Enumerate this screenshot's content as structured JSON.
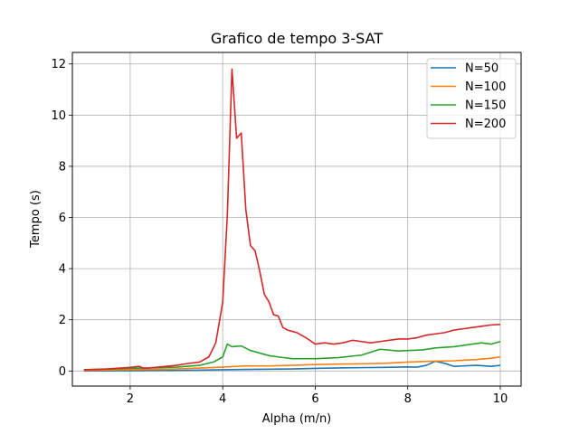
{
  "chart_data": {
    "type": "line",
    "title": "Grafico de tempo 3-SAT",
    "xlabel": "Alpha (m/n)",
    "ylabel": "Tempo (s)",
    "xlim": [
      0.75,
      10.45
    ],
    "ylim": [
      -0.59,
      12.45
    ],
    "xticks": [
      2,
      4,
      6,
      8,
      10
    ],
    "yticks": [
      0,
      2,
      4,
      6,
      8,
      10,
      12
    ],
    "grid": true,
    "legend_position": "top-right",
    "series": [
      {
        "name": "N=50",
        "color": "#1f77b4",
        "points": [
          [
            1.0,
            0.0
          ],
          [
            2.0,
            0.01
          ],
          [
            3.0,
            0.02
          ],
          [
            4.0,
            0.05
          ],
          [
            4.5,
            0.06
          ],
          [
            5.0,
            0.07
          ],
          [
            5.5,
            0.08
          ],
          [
            6.0,
            0.1
          ],
          [
            6.5,
            0.12
          ],
          [
            7.0,
            0.13
          ],
          [
            7.5,
            0.14
          ],
          [
            8.0,
            0.16
          ],
          [
            8.2,
            0.15
          ],
          [
            8.4,
            0.22
          ],
          [
            8.6,
            0.38
          ],
          [
            8.8,
            0.3
          ],
          [
            9.0,
            0.18
          ],
          [
            9.2,
            0.2
          ],
          [
            9.5,
            0.22
          ],
          [
            9.8,
            0.18
          ],
          [
            10.0,
            0.22
          ]
        ]
      },
      {
        "name": "N=100",
        "color": "#ff7f0e",
        "points": [
          [
            1.0,
            0.02
          ],
          [
            2.0,
            0.05
          ],
          [
            3.0,
            0.08
          ],
          [
            4.0,
            0.15
          ],
          [
            4.5,
            0.2
          ],
          [
            5.0,
            0.2
          ],
          [
            5.5,
            0.22
          ],
          [
            6.0,
            0.25
          ],
          [
            6.5,
            0.27
          ],
          [
            7.0,
            0.28
          ],
          [
            7.5,
            0.3
          ],
          [
            8.0,
            0.35
          ],
          [
            8.5,
            0.38
          ],
          [
            9.0,
            0.4
          ],
          [
            9.5,
            0.45
          ],
          [
            9.8,
            0.5
          ],
          [
            10.0,
            0.55
          ]
        ]
      },
      {
        "name": "N=150",
        "color": "#2ca02c",
        "points": [
          [
            1.0,
            0.05
          ],
          [
            2.0,
            0.1
          ],
          [
            3.0,
            0.15
          ],
          [
            3.5,
            0.22
          ],
          [
            3.8,
            0.35
          ],
          [
            4.0,
            0.55
          ],
          [
            4.1,
            1.05
          ],
          [
            4.2,
            0.95
          ],
          [
            4.4,
            0.98
          ],
          [
            4.6,
            0.8
          ],
          [
            5.0,
            0.6
          ],
          [
            5.2,
            0.55
          ],
          [
            5.5,
            0.48
          ],
          [
            6.0,
            0.48
          ],
          [
            6.5,
            0.52
          ],
          [
            7.0,
            0.62
          ],
          [
            7.4,
            0.85
          ],
          [
            7.8,
            0.78
          ],
          [
            8.0,
            0.8
          ],
          [
            8.3,
            0.82
          ],
          [
            8.6,
            0.9
          ],
          [
            9.0,
            0.95
          ],
          [
            9.4,
            1.05
          ],
          [
            9.6,
            1.1
          ],
          [
            9.8,
            1.05
          ],
          [
            10.0,
            1.15
          ]
        ]
      },
      {
        "name": "N=200",
        "color": "#d62728",
        "points": [
          [
            1.0,
            0.05
          ],
          [
            1.5,
            0.08
          ],
          [
            2.0,
            0.14
          ],
          [
            2.2,
            0.18
          ],
          [
            2.3,
            0.1
          ],
          [
            2.6,
            0.15
          ],
          [
            3.0,
            0.22
          ],
          [
            3.2,
            0.28
          ],
          [
            3.5,
            0.35
          ],
          [
            3.7,
            0.55
          ],
          [
            3.85,
            1.1
          ],
          [
            4.0,
            2.7
          ],
          [
            4.1,
            6.1
          ],
          [
            4.2,
            11.8
          ],
          [
            4.3,
            9.1
          ],
          [
            4.4,
            9.3
          ],
          [
            4.5,
            6.3
          ],
          [
            4.6,
            4.9
          ],
          [
            4.7,
            4.7
          ],
          [
            4.8,
            3.9
          ],
          [
            4.9,
            3.0
          ],
          [
            5.0,
            2.7
          ],
          [
            5.1,
            2.2
          ],
          [
            5.2,
            2.15
          ],
          [
            5.3,
            1.7
          ],
          [
            5.4,
            1.6
          ],
          [
            5.5,
            1.55
          ],
          [
            5.6,
            1.5
          ],
          [
            5.8,
            1.3
          ],
          [
            6.0,
            1.05
          ],
          [
            6.2,
            1.1
          ],
          [
            6.4,
            1.05
          ],
          [
            6.6,
            1.1
          ],
          [
            6.8,
            1.2
          ],
          [
            7.0,
            1.15
          ],
          [
            7.2,
            1.1
          ],
          [
            7.4,
            1.15
          ],
          [
            7.6,
            1.2
          ],
          [
            7.8,
            1.25
          ],
          [
            8.0,
            1.25
          ],
          [
            8.2,
            1.3
          ],
          [
            8.4,
            1.4
          ],
          [
            8.6,
            1.45
          ],
          [
            8.8,
            1.5
          ],
          [
            9.0,
            1.6
          ],
          [
            9.2,
            1.65
          ],
          [
            9.4,
            1.7
          ],
          [
            9.6,
            1.75
          ],
          [
            9.8,
            1.8
          ],
          [
            10.0,
            1.82
          ]
        ]
      }
    ]
  }
}
